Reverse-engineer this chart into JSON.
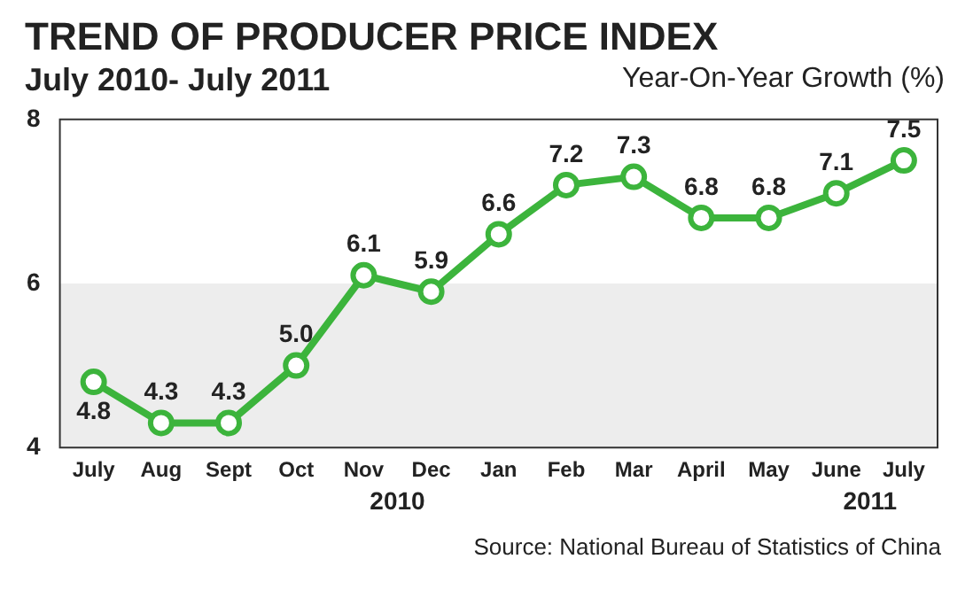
{
  "chart_data": {
    "type": "line",
    "title": "TREND OF PRODUCER PRICE INDEX",
    "subtitle": "July 2010- July 2011",
    "ylabel": "Year-On-Year Growth (%)",
    "categories": [
      "July",
      "Aug",
      "Sept",
      "Oct",
      "Nov",
      "Dec",
      "Jan",
      "Feb",
      "Mar",
      "April",
      "May",
      "June",
      "July"
    ],
    "series": [
      {
        "color": "#3cb43c",
        "values": [
          4.8,
          4.3,
          4.3,
          5.0,
          6.1,
          5.9,
          6.6,
          7.2,
          7.3,
          6.8,
          6.8,
          7.1,
          7.5
        ],
        "value_labels": [
          "4.8",
          "4.3",
          "4.3",
          "5.0",
          "6.1",
          "5.9",
          "6.6",
          "7.2",
          "7.3",
          "6.8",
          "6.8",
          "7.1",
          "7.5"
        ]
      }
    ],
    "ylim": [
      4,
      8
    ],
    "yticks": [
      4,
      6,
      8
    ],
    "grid": false,
    "legend": false,
    "marker": "circle",
    "line_style": "solid",
    "bands": [
      {
        "axis": "y",
        "from": 4,
        "to": 6,
        "color": "#ededed"
      }
    ],
    "annotations": [
      "2010",
      "2011",
      "Source: National Bureau of Statistics of China"
    ]
  }
}
